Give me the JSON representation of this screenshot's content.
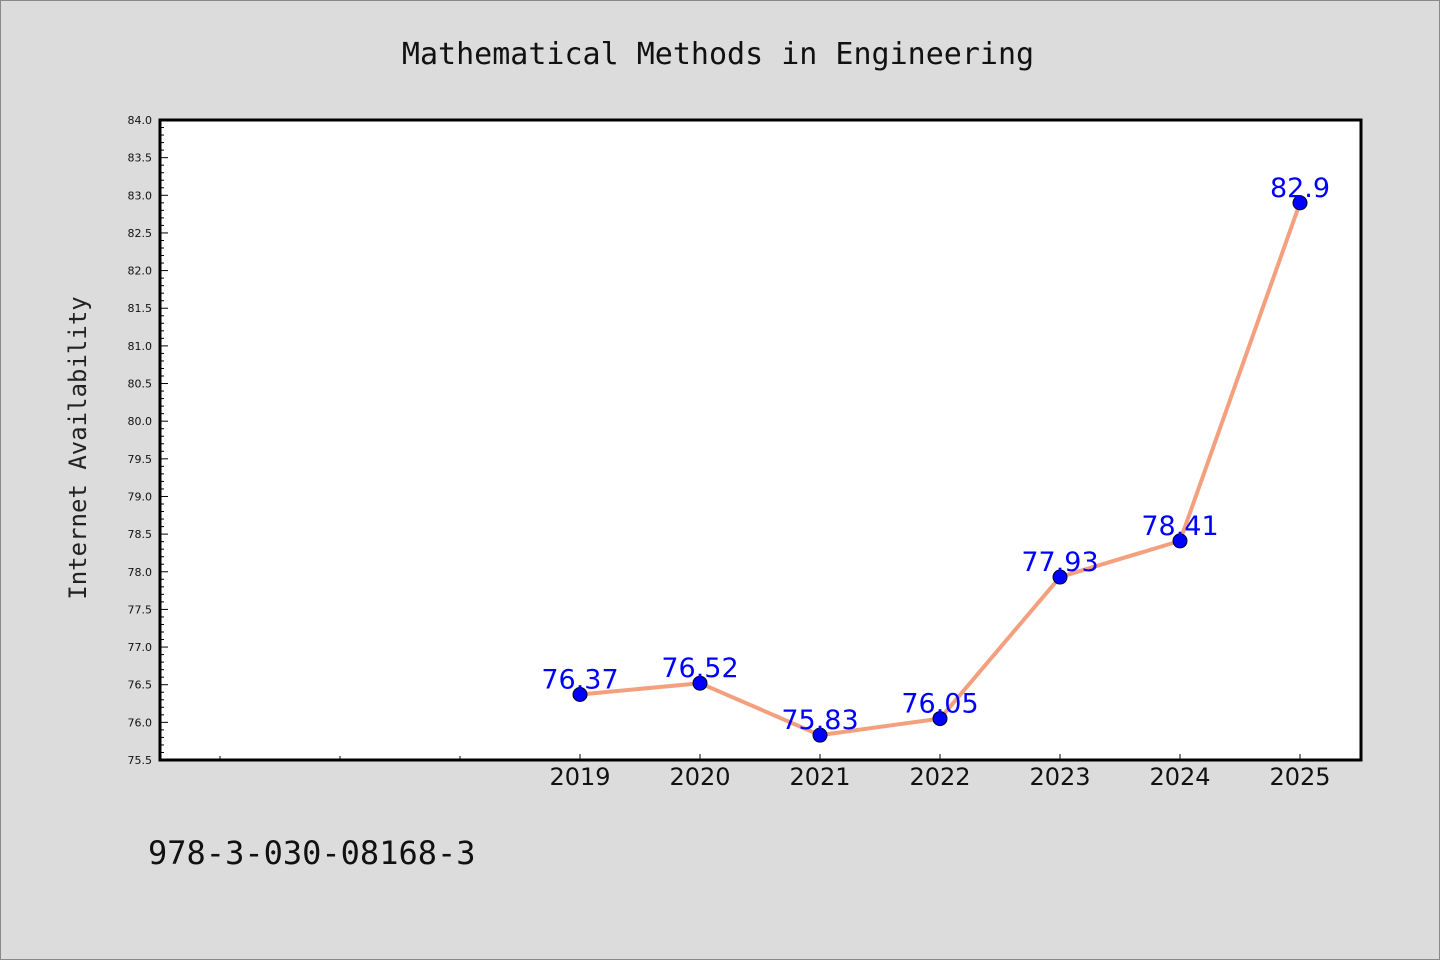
{
  "isbn": "978-3-030-08168-3",
  "colors": {
    "background": "#dcdcdc",
    "plot_background": "#ffffff",
    "line": "#f4a07f",
    "marker": "#0000ff",
    "data_label": "#0000ff"
  },
  "chart_data": {
    "type": "line",
    "title": "Mathematical Methods in Engineering",
    "xlabel": "",
    "ylabel": "Internet Availability",
    "x": [
      "2019",
      "2020",
      "2021",
      "2022",
      "2023",
      "2024",
      "2025"
    ],
    "series": [
      {
        "values": [
          76.37,
          76.52,
          75.83,
          76.05,
          77.93,
          78.41,
          82.9
        ]
      }
    ],
    "data_labels": [
      "76.37",
      "76.52",
      "75.83",
      "76.05",
      "77.93",
      "78.41",
      "82.9"
    ],
    "ylim": [
      75.5,
      84.0
    ],
    "yticks": [
      "75.5",
      "76.0",
      "76.5",
      "77.0",
      "77.5",
      "78.0",
      "78.5",
      "79.0",
      "79.5",
      "80.0",
      "80.5",
      "81.0",
      "81.5",
      "82.0",
      "82.5",
      "83.0",
      "83.5",
      "84.0"
    ],
    "x_leading_empty_slots": 3,
    "grid": false,
    "legend": "none"
  }
}
